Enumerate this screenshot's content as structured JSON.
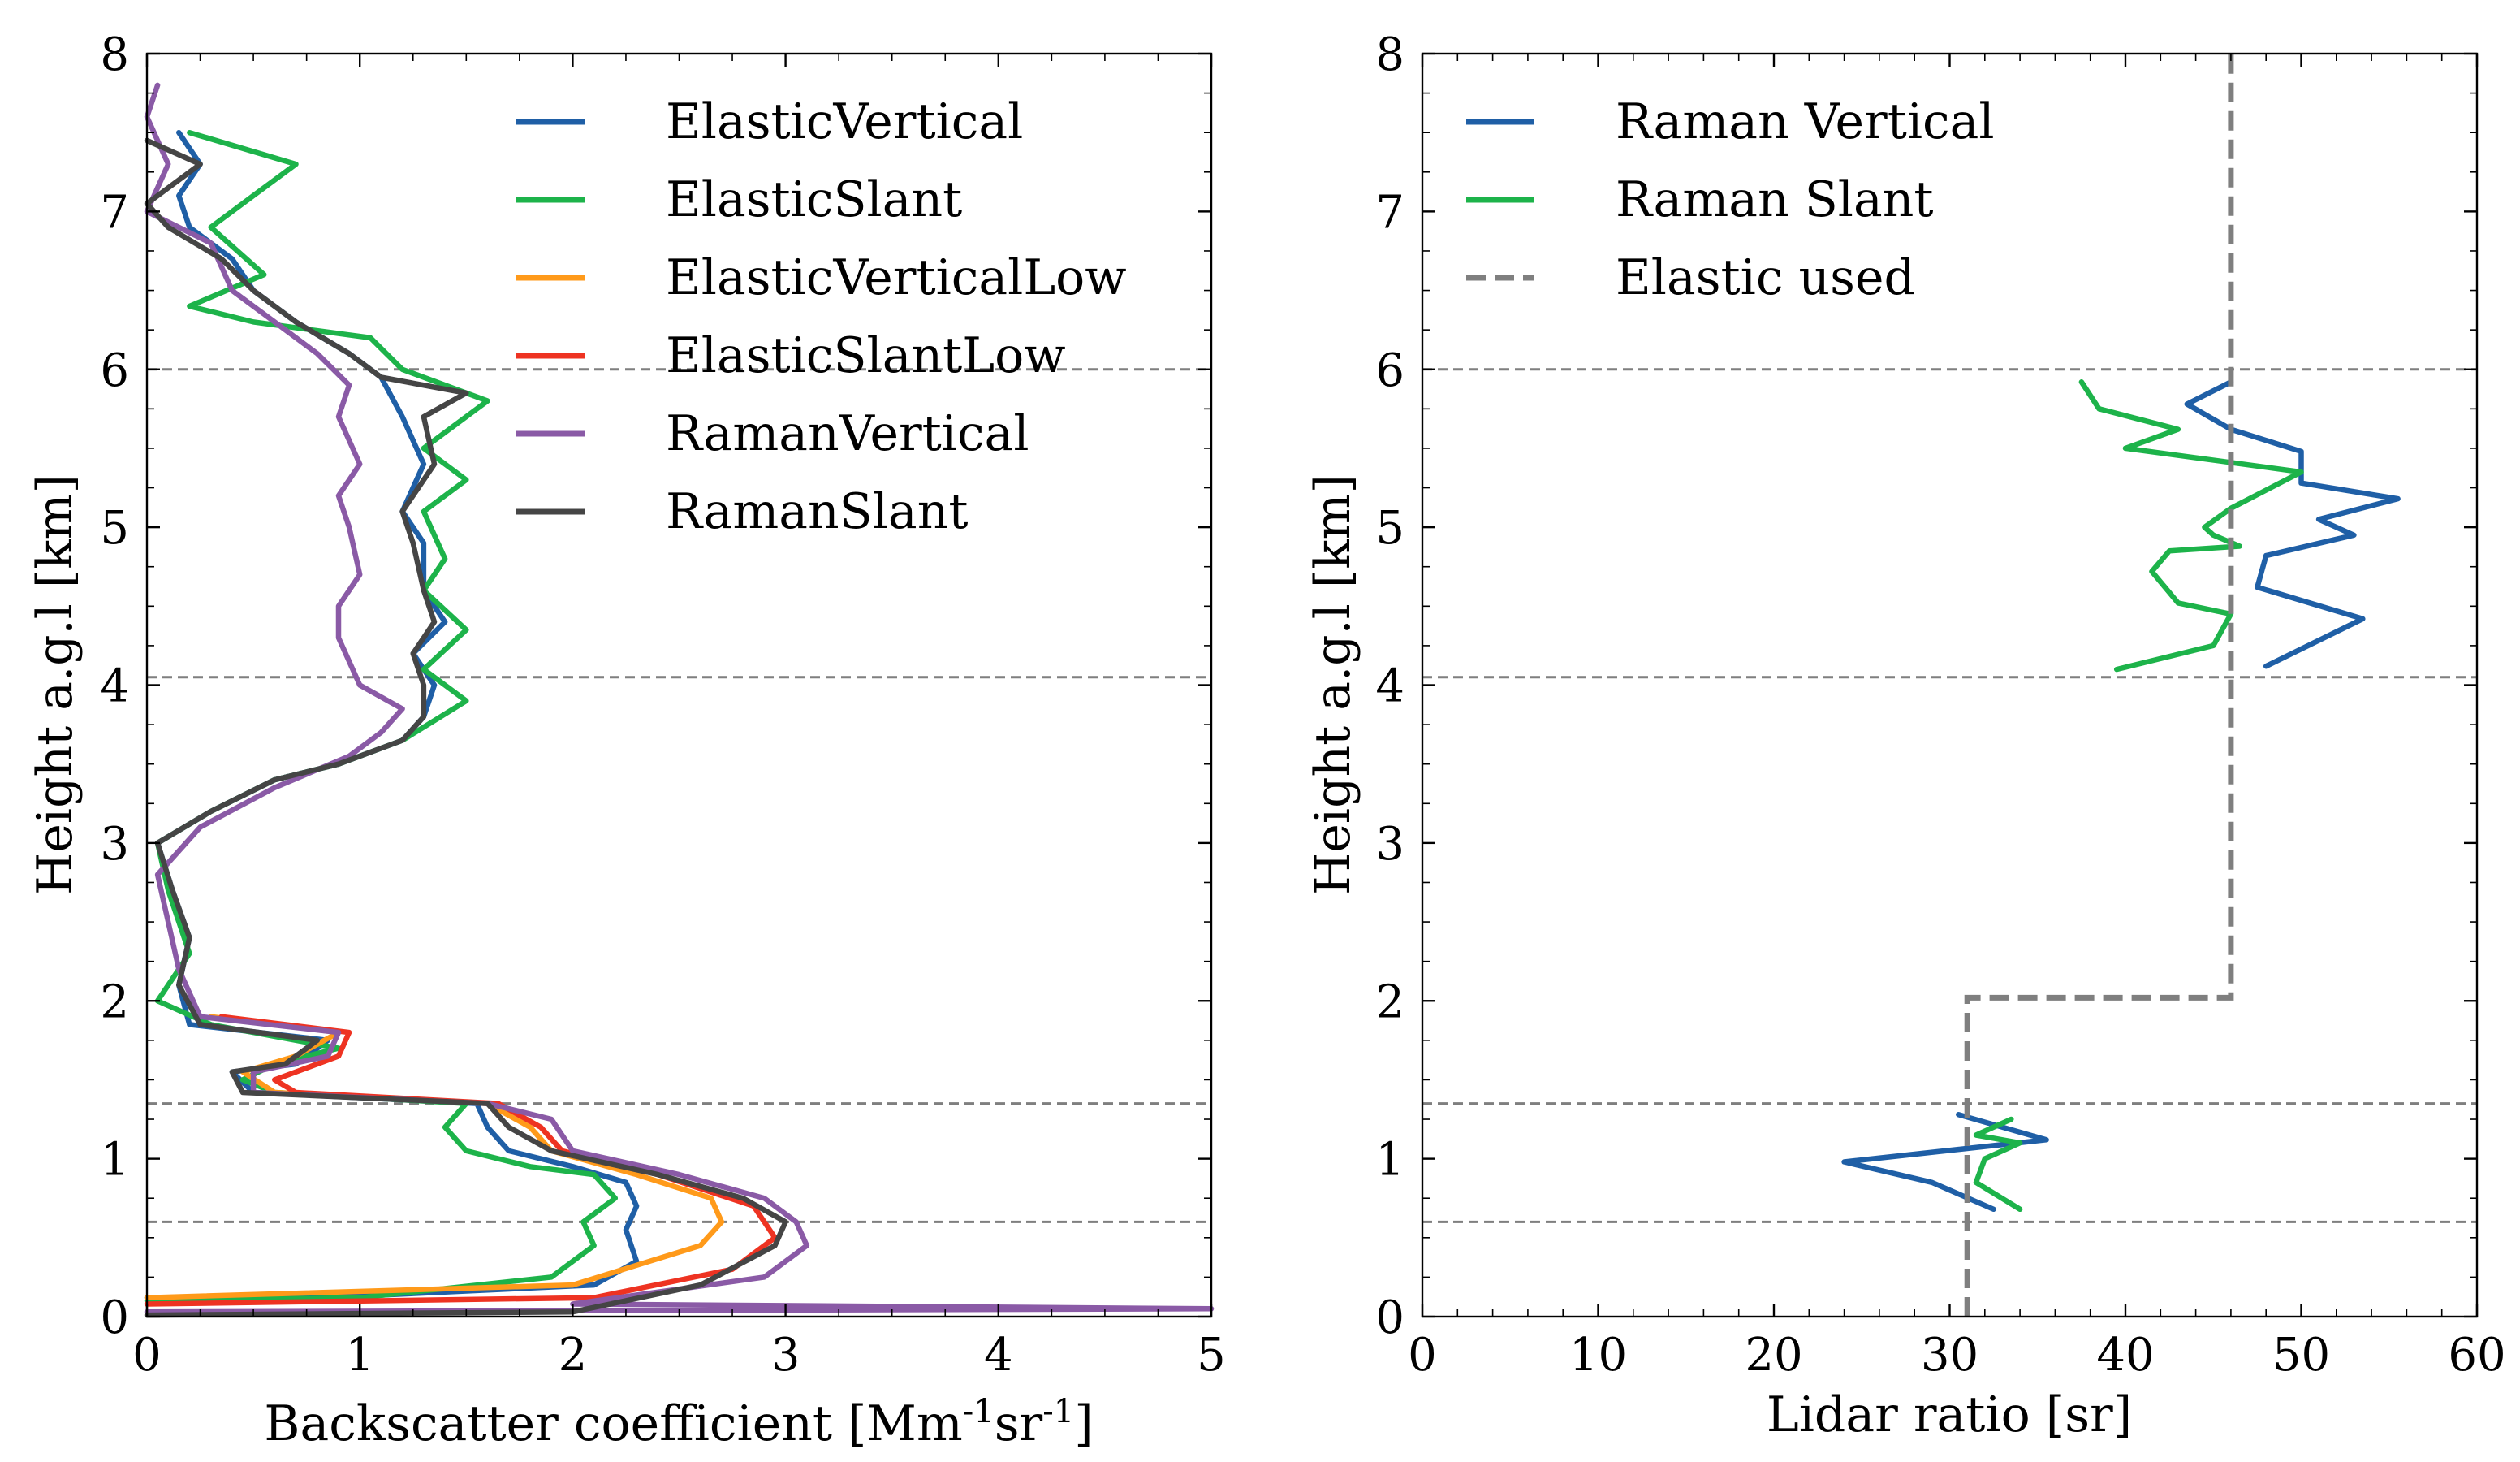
{
  "chart_data": [
    {
      "type": "line",
      "xlabel_text": "Backscatter coefficient [Mm",
      "xlabel_sup1": "-1",
      "xlabel_mid": "sr",
      "xlabel_sup2": "-1",
      "xlabel_end": "]",
      "ylabel": "Height a.g.l [km]",
      "xlim": [
        0,
        5
      ],
      "ylim": [
        0,
        8
      ],
      "xticks": [
        "0",
        "1",
        "2",
        "3",
        "4",
        "5"
      ],
      "yticks": [
        "0",
        "1",
        "2",
        "3",
        "4",
        "5",
        "6",
        "7",
        "8"
      ],
      "hlines": [
        0.6,
        1.35,
        4.05,
        6.0
      ],
      "legend_position": "upper-right",
      "series": [
        {
          "name": "ElasticVertical",
          "color": "#1f5fa6",
          "points": [
            [
              0.0,
              0.12
            ],
            [
              1.0,
              0.13
            ],
            [
              2.1,
              0.2
            ],
            [
              2.3,
              0.35
            ],
            [
              2.25,
              0.55
            ],
            [
              2.3,
              0.7
            ],
            [
              2.25,
              0.85
            ],
            [
              2.0,
              0.95
            ],
            [
              1.7,
              1.05
            ],
            [
              1.6,
              1.2
            ],
            [
              1.55,
              1.35
            ],
            [
              0.5,
              1.42
            ],
            [
              0.4,
              1.55
            ],
            [
              0.7,
              1.6
            ],
            [
              0.85,
              1.75
            ],
            [
              0.2,
              1.85
            ],
            [
              0.15,
              2.1
            ],
            [
              0.2,
              2.4
            ],
            [
              0.12,
              2.7
            ],
            [
              0.05,
              3.0
            ],
            [
              0.3,
              3.2
            ],
            [
              0.6,
              3.4
            ],
            [
              0.9,
              3.5
            ],
            [
              1.2,
              3.65
            ],
            [
              1.3,
              3.8
            ],
            [
              1.35,
              4.0
            ],
            [
              1.25,
              4.2
            ],
            [
              1.4,
              4.4
            ],
            [
              1.3,
              4.6
            ],
            [
              1.3,
              4.9
            ],
            [
              1.2,
              5.1
            ],
            [
              1.3,
              5.4
            ],
            [
              1.2,
              5.7
            ],
            [
              1.1,
              5.95
            ],
            [
              0.95,
              6.1
            ],
            [
              0.7,
              6.3
            ],
            [
              0.5,
              6.5
            ],
            [
              0.4,
              6.7
            ],
            [
              0.2,
              6.9
            ],
            [
              0.15,
              7.1
            ],
            [
              0.25,
              7.3
            ],
            [
              0.15,
              7.5
            ]
          ]
        },
        {
          "name": "ElasticSlant",
          "color": "#1db34a",
          "points": [
            [
              0.0,
              0.1
            ],
            [
              1.0,
              0.12
            ],
            [
              1.9,
              0.25
            ],
            [
              2.1,
              0.45
            ],
            [
              2.05,
              0.6
            ],
            [
              2.2,
              0.75
            ],
            [
              2.1,
              0.9
            ],
            [
              1.8,
              0.95
            ],
            [
              1.5,
              1.05
            ],
            [
              1.4,
              1.2
            ],
            [
              1.5,
              1.35
            ],
            [
              0.6,
              1.42
            ],
            [
              0.45,
              1.5
            ],
            [
              0.6,
              1.6
            ],
            [
              0.9,
              1.7
            ],
            [
              0.3,
              1.85
            ],
            [
              0.05,
              2.0
            ],
            [
              0.2,
              2.3
            ],
            [
              0.1,
              2.7
            ],
            [
              0.05,
              3.0
            ],
            [
              0.3,
              3.2
            ],
            [
              0.6,
              3.4
            ],
            [
              0.9,
              3.5
            ],
            [
              1.2,
              3.65
            ],
            [
              1.5,
              3.9
            ],
            [
              1.3,
              4.1
            ],
            [
              1.5,
              4.35
            ],
            [
              1.3,
              4.6
            ],
            [
              1.4,
              4.8
            ],
            [
              1.3,
              5.1
            ],
            [
              1.5,
              5.3
            ],
            [
              1.3,
              5.5
            ],
            [
              1.6,
              5.8
            ],
            [
              1.2,
              6.0
            ],
            [
              1.05,
              6.2
            ],
            [
              0.5,
              6.3
            ],
            [
              0.2,
              6.4
            ],
            [
              0.55,
              6.6
            ],
            [
              0.3,
              6.9
            ],
            [
              0.5,
              7.1
            ],
            [
              0.7,
              7.3
            ],
            [
              0.2,
              7.5
            ]
          ]
        },
        {
          "name": "ElasticVerticalLow",
          "color": "#ff9a1a",
          "points": [
            [
              0.0,
              0.12
            ],
            [
              2.0,
              0.2
            ],
            [
              2.6,
              0.45
            ],
            [
              2.7,
              0.6
            ],
            [
              2.65,
              0.75
            ],
            [
              2.3,
              0.9
            ],
            [
              1.9,
              1.05
            ],
            [
              1.8,
              1.2
            ],
            [
              1.6,
              1.35
            ],
            [
              0.6,
              1.42
            ],
            [
              0.45,
              1.55
            ],
            [
              0.7,
              1.65
            ],
            [
              0.9,
              1.8
            ],
            [
              0.3,
              1.9
            ]
          ]
        },
        {
          "name": "ElasticSlantLow",
          "color": "#ee3322",
          "points": [
            [
              0.0,
              0.08
            ],
            [
              2.1,
              0.12
            ],
            [
              2.75,
              0.3
            ],
            [
              2.95,
              0.5
            ],
            [
              2.85,
              0.7
            ],
            [
              2.4,
              0.9
            ],
            [
              1.95,
              1.05
            ],
            [
              1.85,
              1.2
            ],
            [
              1.65,
              1.35
            ],
            [
              0.7,
              1.42
            ],
            [
              0.6,
              1.5
            ],
            [
              0.9,
              1.65
            ],
            [
              0.95,
              1.8
            ],
            [
              0.35,
              1.9
            ]
          ]
        },
        {
          "name": "RamanVertical",
          "color": "#8a5aa6",
          "points": [
            [
              0.0,
              0.03
            ],
            [
              5.0,
              0.05
            ],
            [
              2.0,
              0.08
            ],
            [
              2.9,
              0.25
            ],
            [
              3.1,
              0.45
            ],
            [
              3.05,
              0.6
            ],
            [
              2.9,
              0.75
            ],
            [
              2.5,
              0.9
            ],
            [
              2.0,
              1.05
            ],
            [
              1.9,
              1.25
            ],
            [
              1.6,
              1.35
            ],
            [
              0.5,
              1.42
            ],
            [
              0.5,
              1.55
            ],
            [
              0.85,
              1.65
            ],
            [
              0.9,
              1.8
            ],
            [
              0.25,
              1.9
            ],
            [
              0.15,
              2.2
            ],
            [
              0.1,
              2.5
            ],
            [
              0.05,
              2.8
            ],
            [
              0.25,
              3.1
            ],
            [
              0.6,
              3.35
            ],
            [
              0.95,
              3.55
            ],
            [
              1.1,
              3.7
            ],
            [
              1.2,
              3.85
            ],
            [
              1.0,
              4.0
            ],
            [
              0.9,
              4.3
            ],
            [
              0.9,
              4.5
            ],
            [
              1.0,
              4.7
            ],
            [
              0.95,
              5.0
            ],
            [
              0.9,
              5.2
            ],
            [
              1.0,
              5.4
            ],
            [
              0.9,
              5.7
            ],
            [
              0.95,
              5.9
            ],
            [
              0.8,
              6.1
            ],
            [
              0.6,
              6.3
            ],
            [
              0.4,
              6.5
            ],
            [
              0.3,
              6.8
            ],
            [
              0.0,
              7.0
            ],
            [
              0.1,
              7.3
            ],
            [
              0.0,
              7.6
            ],
            [
              0.05,
              7.8
            ]
          ]
        },
        {
          "name": "RamanSlant",
          "color": "#454545",
          "points": [
            [
              0.0,
              0.01
            ],
            [
              2.0,
              0.03
            ],
            [
              2.6,
              0.2
            ],
            [
              2.95,
              0.45
            ],
            [
              3.0,
              0.6
            ],
            [
              2.8,
              0.75
            ],
            [
              2.4,
              0.9
            ],
            [
              1.9,
              1.05
            ],
            [
              1.7,
              1.2
            ],
            [
              1.6,
              1.35
            ],
            [
              0.45,
              1.42
            ],
            [
              0.4,
              1.55
            ],
            [
              0.65,
              1.6
            ],
            [
              0.8,
              1.75
            ],
            [
              0.25,
              1.85
            ],
            [
              0.15,
              2.1
            ],
            [
              0.2,
              2.4
            ],
            [
              0.12,
              2.7
            ],
            [
              0.05,
              3.0
            ],
            [
              0.3,
              3.2
            ],
            [
              0.6,
              3.4
            ],
            [
              0.9,
              3.5
            ],
            [
              1.2,
              3.65
            ],
            [
              1.3,
              3.8
            ],
            [
              1.3,
              4.0
            ],
            [
              1.25,
              4.2
            ],
            [
              1.35,
              4.4
            ],
            [
              1.3,
              4.6
            ],
            [
              1.25,
              4.9
            ],
            [
              1.2,
              5.1
            ],
            [
              1.35,
              5.4
            ],
            [
              1.3,
              5.7
            ],
            [
              1.5,
              5.85
            ],
            [
              1.1,
              5.95
            ],
            [
              0.95,
              6.1
            ],
            [
              0.7,
              6.3
            ],
            [
              0.5,
              6.5
            ],
            [
              0.35,
              6.7
            ],
            [
              0.1,
              6.9
            ],
            [
              0.0,
              7.05
            ],
            [
              0.25,
              7.3
            ],
            [
              0.0,
              7.45
            ]
          ]
        }
      ]
    },
    {
      "type": "line",
      "xlabel": "Lidar ratio [sr]",
      "ylabel": "Height a.g.l [km]",
      "xlim": [
        0,
        60
      ],
      "ylim": [
        0,
        8
      ],
      "xticks": [
        "0",
        "10",
        "20",
        "30",
        "40",
        "50",
        "60"
      ],
      "yticks": [
        "0",
        "1",
        "2",
        "3",
        "4",
        "5",
        "6",
        "7",
        "8"
      ],
      "hlines": [
        0.6,
        1.35,
        4.05,
        6.0
      ],
      "legend_position": "upper-left",
      "series": [
        {
          "name": "Raman Vertical",
          "color": "#1f5fa6",
          "segments": [
            [
              [
                30.5,
                1.28
              ],
              [
                35.5,
                1.12
              ],
              [
                24.0,
                0.98
              ],
              [
                29.0,
                0.85
              ],
              [
                32.5,
                0.68
              ]
            ],
            [
              [
                48.0,
                4.12
              ],
              [
                53.5,
                4.42
              ],
              [
                47.5,
                4.62
              ],
              [
                48.0,
                4.82
              ],
              [
                53.0,
                4.95
              ],
              [
                51.0,
                5.05
              ],
              [
                55.5,
                5.18
              ],
              [
                50.0,
                5.28
              ],
              [
                50.0,
                5.48
              ],
              [
                46.0,
                5.62
              ],
              [
                43.5,
                5.78
              ],
              [
                46.0,
                5.92
              ]
            ]
          ]
        },
        {
          "name": "Raman Slant",
          "color": "#1db34a",
          "segments": [
            [
              [
                33.5,
                1.25
              ],
              [
                31.5,
                1.15
              ],
              [
                34.0,
                1.1
              ],
              [
                32.0,
                1.0
              ],
              [
                31.5,
                0.85
              ],
              [
                34.0,
                0.68
              ]
            ],
            [
              [
                39.5,
                4.1
              ],
              [
                45.0,
                4.25
              ],
              [
                46.0,
                4.45
              ],
              [
                43.0,
                4.52
              ],
              [
                41.5,
                4.72
              ],
              [
                42.5,
                4.85
              ],
              [
                46.5,
                4.88
              ],
              [
                45.0,
                4.95
              ],
              [
                44.5,
                5.0
              ],
              [
                46.0,
                5.12
              ],
              [
                50.0,
                5.35
              ],
              [
                40.0,
                5.5
              ],
              [
                43.0,
                5.62
              ],
              [
                38.5,
                5.75
              ],
              [
                37.5,
                5.92
              ]
            ]
          ]
        },
        {
          "name": "Elastic used",
          "color": "#7f7f7f",
          "dashed": true,
          "points": [
            [
              31.0,
              0.0
            ],
            [
              31.0,
              2.02
            ],
            [
              46.0,
              2.02
            ],
            [
              46.0,
              8.0
            ]
          ]
        }
      ]
    }
  ]
}
